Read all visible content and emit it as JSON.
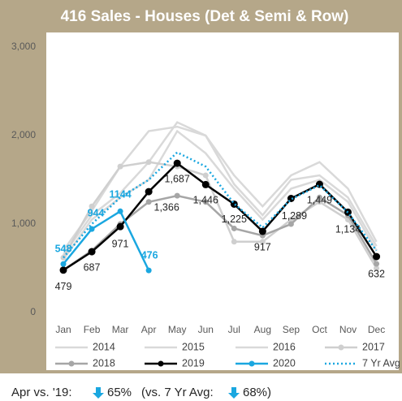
{
  "chart_data": {
    "type": "line",
    "title": "416 Sales  - Houses (Det & Semi & Row)",
    "categories": [
      "Jan",
      "Feb",
      "Mar",
      "Apr",
      "May",
      "Jun",
      "Jul",
      "Aug",
      "Sep",
      "Oct",
      "Nov",
      "Dec"
    ],
    "ylim": [
      0,
      3000
    ],
    "yticks": [
      0,
      {
        "value": 1000,
        "label": "1,000"
      },
      {
        "value": 2000,
        "label": "2,000"
      },
      {
        "value": 3000,
        "label": "3,000"
      }
    ],
    "grid": false,
    "series": [
      {
        "name": "2014",
        "color": "#d9d9d9",
        "marker": false,
        "values": [
          600,
          1050,
          1300,
          1500,
          2050,
          1800,
          1400,
          1050,
          1400,
          1500,
          1250,
          700
        ]
      },
      {
        "name": "2015",
        "color": "#d9d9d9",
        "marker": false,
        "values": [
          650,
          1100,
          1350,
          1700,
          2150,
          2000,
          1450,
          1100,
          1500,
          1550,
          1300,
          750
        ]
      },
      {
        "name": "2016",
        "color": "#d9d9d9",
        "marker": false,
        "values": [
          700,
          1150,
          1650,
          2050,
          2100,
          2000,
          1550,
          1200,
          1550,
          1700,
          1400,
          800
        ]
      },
      {
        "name": "2017",
        "color": "#cfcfcf",
        "marker": true,
        "values": [
          620,
          1200,
          1650,
          1700,
          1650,
          1550,
          800,
          800,
          1050,
          1250,
          1050,
          500
        ]
      },
      {
        "name": "2018",
        "color": "#a6a6a6",
        "marker": true,
        "values": [
          480,
          700,
          1000,
          1250,
          1320,
          1250,
          950,
          870,
          1000,
          1300,
          1100,
          550
        ]
      },
      {
        "name": "2019",
        "color": "#000000",
        "marker": true,
        "values": [
          479,
          687,
          971,
          1366,
          1687,
          1446,
          1225,
          917,
          1289,
          1449,
          1134,
          632
        ],
        "value_labels": [
          "479",
          "687",
          "971",
          "1,366",
          "1,687",
          "1,446",
          "1,225",
          "917",
          "1,289",
          "1,449",
          "1,134",
          "632"
        ]
      },
      {
        "name": "2020",
        "color": "#1aa7e0",
        "marker": true,
        "values": [
          548,
          944,
          1144,
          476,
          null,
          null,
          null,
          null,
          null,
          null,
          null,
          null
        ],
        "value_labels": [
          "548",
          "944",
          "1144",
          "476",
          null,
          null,
          null,
          null,
          null,
          null,
          null,
          null
        ]
      },
      {
        "name": "7 Yr Avg",
        "color": "#1aa7e0",
        "marker": false,
        "dash": true,
        "values": [
          620,
          1000,
          1300,
          1500,
          1810,
          1650,
          1230,
          960,
          1280,
          1440,
          1130,
          700
        ]
      }
    ],
    "footnote": {
      "lead": "Apr vs. '19:",
      "first": "65%",
      "middle": "(vs. 7 Yr Avg:",
      "second": "68%)"
    }
  }
}
